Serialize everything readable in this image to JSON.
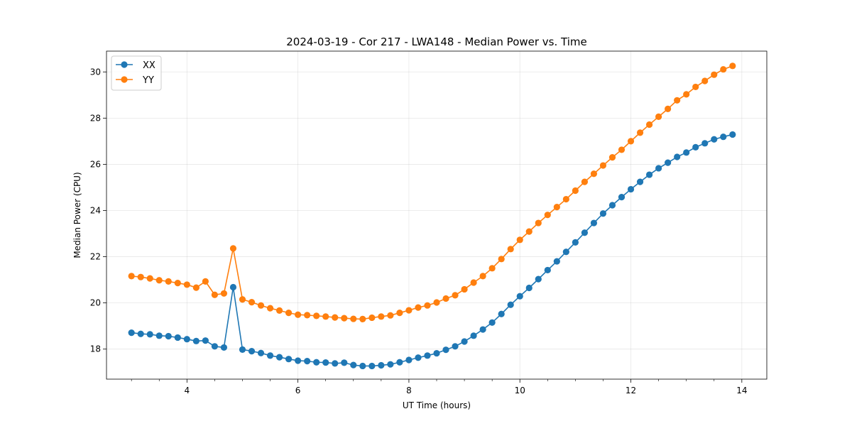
{
  "chart_data": {
    "type": "line",
    "title": "2024-03-19 - Cor 217 - LWA148 - Median Power vs. Time",
    "xlabel": "UT Time (hours)",
    "ylabel": "Median Power (CPU)",
    "xlim": [
      2.55,
      14.45
    ],
    "ylim": [
      16.7,
      30.9
    ],
    "xticks": [
      4,
      6,
      8,
      10,
      12,
      14
    ],
    "yticks": [
      18,
      20,
      22,
      24,
      26,
      28,
      30
    ],
    "x_minor_step": 0.5,
    "grid": true,
    "legend_position": "upper-left",
    "x": [
      3.0,
      3.1667,
      3.3333,
      3.5,
      3.6667,
      3.8333,
      4.0,
      4.1667,
      4.3333,
      4.5,
      4.6667,
      4.8333,
      5.0,
      5.1667,
      5.3333,
      5.5,
      5.6667,
      5.8333,
      6.0,
      6.1667,
      6.3333,
      6.5,
      6.6667,
      6.8333,
      7.0,
      7.1667,
      7.3333,
      7.5,
      7.6667,
      7.8333,
      8.0,
      8.1667,
      8.3333,
      8.5,
      8.6667,
      8.8333,
      9.0,
      9.1667,
      9.3333,
      9.5,
      9.6667,
      9.8333,
      10.0,
      10.1667,
      10.3333,
      10.5,
      10.6667,
      10.8333,
      11.0,
      11.1667,
      11.3333,
      11.5,
      11.6667,
      11.8333,
      12.0,
      12.1667,
      12.3333,
      12.5,
      12.6667,
      12.8333,
      13.0,
      13.1667,
      13.3333,
      13.5,
      13.6667,
      13.8333
    ],
    "series": [
      {
        "name": "XX",
        "color": "#1f77b4",
        "values": [
          18.71,
          18.66,
          18.64,
          18.58,
          18.56,
          18.5,
          18.43,
          18.35,
          18.37,
          18.12,
          18.07,
          20.68,
          17.98,
          17.91,
          17.83,
          17.72,
          17.65,
          17.57,
          17.5,
          17.48,
          17.43,
          17.42,
          17.38,
          17.41,
          17.31,
          17.27,
          17.27,
          17.3,
          17.34,
          17.43,
          17.53,
          17.63,
          17.72,
          17.82,
          17.97,
          18.12,
          18.33,
          18.58,
          18.85,
          19.15,
          19.52,
          19.92,
          20.29,
          20.65,
          21.03,
          21.42,
          21.8,
          22.21,
          22.62,
          23.04,
          23.46,
          23.87,
          24.23,
          24.58,
          24.92,
          25.24,
          25.55,
          25.83,
          26.07,
          26.32,
          26.51,
          26.74,
          26.91,
          27.08,
          27.19,
          27.29
        ]
      },
      {
        "name": "YY",
        "color": "#ff7f0e",
        "values": [
          21.16,
          21.12,
          21.06,
          20.98,
          20.93,
          20.86,
          20.79,
          20.66,
          20.93,
          20.35,
          20.41,
          22.36,
          20.15,
          20.03,
          19.89,
          19.77,
          19.67,
          19.57,
          19.49,
          19.47,
          19.44,
          19.41,
          19.37,
          19.34,
          19.31,
          19.3,
          19.36,
          19.41,
          19.46,
          19.57,
          19.68,
          19.8,
          19.89,
          20.02,
          20.19,
          20.33,
          20.59,
          20.88,
          21.16,
          21.5,
          21.9,
          22.33,
          22.73,
          23.09,
          23.46,
          23.81,
          24.15,
          24.49,
          24.86,
          25.24,
          25.59,
          25.95,
          26.3,
          26.63,
          27.0,
          27.37,
          27.72,
          28.06,
          28.4,
          28.77,
          29.03,
          29.35,
          29.61,
          29.88,
          30.11,
          30.26
        ]
      }
    ]
  }
}
